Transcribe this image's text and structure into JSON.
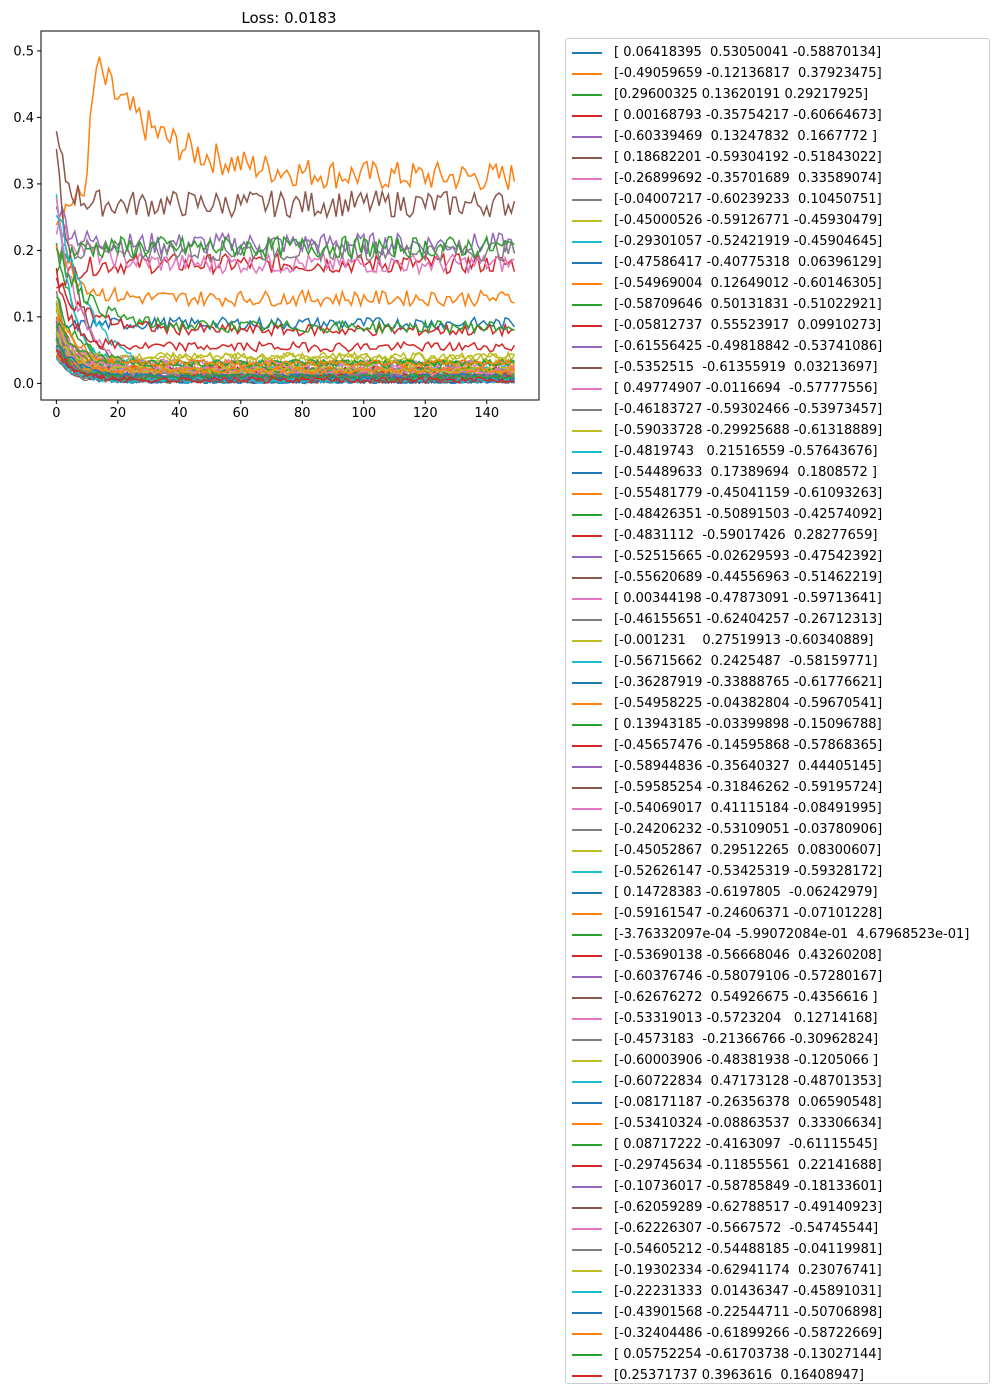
{
  "chart_data": {
    "type": "line",
    "title": "Loss: 0.0183",
    "xlabel": "",
    "ylabel": "",
    "xlim": [
      -5,
      157
    ],
    "ylim": [
      -0.025,
      0.53
    ],
    "xticks": [
      0,
      20,
      40,
      60,
      80,
      100,
      120,
      140
    ],
    "yticks": [
      0.0,
      0.1,
      0.2,
      0.3,
      0.4,
      0.5
    ],
    "ytick_labels": [
      "0.0",
      "0.1",
      "0.2",
      "0.3",
      "0.4",
      "0.5"
    ],
    "grid": false,
    "legend_position": "outside-right",
    "colors": [
      "#1f77b4",
      "#ff7f0e",
      "#2ca02c",
      "#d62728",
      "#9467bd",
      "#8c564b",
      "#e377c2",
      "#7f7f7f",
      "#bcbd22",
      "#17becf"
    ],
    "n_points": 150,
    "series": [
      {
        "name": "[ 0.06418395  0.53050041 -0.58870134]",
        "start": 0.12,
        "end": 0.003
      },
      {
        "name": "[-0.49059659 -0.12136817  0.37923475]",
        "start": 0.25,
        "peak": 0.505,
        "peak_at": 13,
        "end": 0.31
      },
      {
        "name": "[0.29600325 0.13620191 0.29217925]",
        "start": 0.22,
        "end": 0.015
      },
      {
        "name": "[ 0.00168793 -0.35754217 -0.60664673]",
        "start": 0.15,
        "end": 0.18
      },
      {
        "name": "[-0.60339469  0.13247832  0.1667772 ]",
        "start": 0.28,
        "end": 0.21
      },
      {
        "name": "[ 0.18682201 -0.59304192 -0.51843022]",
        "start": 0.37,
        "end": 0.27
      },
      {
        "name": "[-0.26899692 -0.35701689  0.33589074]",
        "start": 0.24,
        "end": 0.18
      },
      {
        "name": "[-0.04007217 -0.60239233  0.10450751]",
        "start": 0.2,
        "end": 0.2
      },
      {
        "name": "[-0.45000526 -0.59126771 -0.45930479]",
        "start": 0.1,
        "end": 0.04
      },
      {
        "name": "[-0.29301057 -0.52421919 -0.45904645]",
        "start": 0.3,
        "end": 0.03
      },
      {
        "name": "[-0.47586417 -0.40775318  0.06396129]",
        "start": 0.08,
        "end": 0.09
      },
      {
        "name": "[-0.54969004  0.12649012 -0.60146305]",
        "start": 0.22,
        "end": 0.128
      },
      {
        "name": "[-0.58709646  0.50131831 -0.51022921]",
        "start": 0.18,
        "end": 0.205
      },
      {
        "name": "[-0.05812737  0.55523917  0.09910273]",
        "start": 0.15,
        "end": 0.08
      },
      {
        "name": "[-0.61556425 -0.49818842 -0.53741086]",
        "start": 0.06,
        "end": 0.02
      },
      {
        "name": "[-0.5352515  -0.61355919  0.03213697]",
        "start": 0.35,
        "end": 0.005
      },
      {
        "name": "[ 0.49774907 -0.0116694  -0.57777556]",
        "start": 0.3,
        "end": 0.03
      },
      {
        "name": "[-0.46183727 -0.59302466 -0.53973457]",
        "start": 0.14,
        "end": 0.01
      },
      {
        "name": "[-0.59033728 -0.29925688 -0.61318889]",
        "start": 0.12,
        "end": 0.02
      },
      {
        "name": "[-0.4819743   0.21516559 -0.57643676]",
        "start": 0.27,
        "end": 0.005
      },
      {
        "name": "[-0.54489633  0.17389694  0.1808572 ]",
        "start": 0.09,
        "end": 0.01
      },
      {
        "name": "[-0.55481779 -0.45041159 -0.61093263]",
        "start": 0.05,
        "end": 0.015
      },
      {
        "name": "[-0.48426351 -0.50891503 -0.42574092]",
        "start": 0.21,
        "end": 0.085
      },
      {
        "name": "[-0.4831112  -0.59017426  0.28277659]",
        "start": 0.16,
        "end": 0.055
      },
      {
        "name": "[-0.52515665 -0.02629593 -0.47542392]",
        "start": 0.1,
        "end": 0.02
      },
      {
        "name": "[-0.55620689 -0.44556963 -0.51462219]",
        "start": 0.08,
        "end": 0.005
      },
      {
        "name": "[ 0.00344198 -0.47873091 -0.59713641]",
        "start": 0.09,
        "end": 0.03
      },
      {
        "name": "[-0.46155651 -0.62404257 -0.26712313]",
        "start": 0.05,
        "end": 0.01
      },
      {
        "name": "[-0.001231    0.27519913 -0.60340889]",
        "start": 0.11,
        "end": 0.04
      },
      {
        "name": "[-0.56715662  0.2425487  -0.58159771]",
        "start": 0.07,
        "end": 0.01
      },
      {
        "name": "[-0.36287919 -0.33888765 -0.61776621]",
        "start": 0.06,
        "end": 0.005
      },
      {
        "name": "[-0.54958225 -0.04382804 -0.59670541]",
        "start": 0.1,
        "end": 0.01
      },
      {
        "name": "[ 0.13943185 -0.03399898 -0.15096788]",
        "start": 0.13,
        "end": 0.03
      },
      {
        "name": "[-0.45657476 -0.14595868 -0.57868365]",
        "start": 0.09,
        "end": 0.02
      },
      {
        "name": "[-0.58944836 -0.35640327  0.44405145]",
        "start": 0.04,
        "end": 0.01
      },
      {
        "name": "[-0.59585254 -0.31846262 -0.59195724]",
        "start": 0.12,
        "end": 0.005
      },
      {
        "name": "[-0.54069017  0.41115184 -0.08491995]",
        "start": 0.08,
        "end": 0.02
      },
      {
        "name": "[-0.24206232 -0.53109051 -0.03780906]",
        "start": 0.06,
        "end": 0.005
      },
      {
        "name": "[-0.45052867  0.29512265  0.08300607]",
        "start": 0.11,
        "end": 0.03
      },
      {
        "name": "[-0.52626147 -0.53425319 -0.59328172]",
        "start": 0.05,
        "end": 0.02
      },
      {
        "name": "[ 0.14728383 -0.6197805  -0.06242979]",
        "start": 0.07,
        "end": 0.002
      },
      {
        "name": "[-0.59161547 -0.24606371 -0.07101228]",
        "start": 0.1,
        "end": 0.01
      },
      {
        "name": "[-3.76332097e-04 -5.99072084e-01  4.67968523e-01]",
        "start": 0.08,
        "end": 0.03
      },
      {
        "name": "[-0.53690138 -0.56668046  0.43260208]",
        "start": 0.06,
        "end": 0.02
      },
      {
        "name": "[-0.60376746 -0.58079106 -0.57280167]",
        "start": 0.09,
        "end": 0.01
      },
      {
        "name": "[-0.62676272  0.54926675 -0.4356616 ]",
        "start": 0.05,
        "end": 0.005
      },
      {
        "name": "[-0.53319013 -0.5723204   0.12714168]",
        "start": 0.07,
        "end": 0.02
      },
      {
        "name": "[-0.4573183  -0.21366766 -0.30962824]",
        "start": 0.06,
        "end": 0.01
      },
      {
        "name": "[-0.60003906 -0.48381938 -0.1205066 ]",
        "start": 0.08,
        "end": 0.02
      },
      {
        "name": "[-0.60722834  0.47173128 -0.48701353]",
        "start": 0.05,
        "end": 0.005
      },
      {
        "name": "[-0.08171187 -0.26356378  0.06590548]",
        "start": 0.07,
        "end": 0.01
      },
      {
        "name": "[-0.53410324 -0.08863537  0.33306634]",
        "start": 0.06,
        "end": 0.03
      },
      {
        "name": "[ 0.08717222 -0.4163097  -0.61115545]",
        "start": 0.09,
        "end": 0.02
      },
      {
        "name": "[-0.29745634 -0.11855561  0.22141688]",
        "start": 0.05,
        "end": 0.01
      },
      {
        "name": "[-0.10736017 -0.58785849 -0.18133601]",
        "start": 0.07,
        "end": 0.01
      },
      {
        "name": "[-0.62059289 -0.62788517 -0.49140923]",
        "start": 0.04,
        "end": 0.005
      },
      {
        "name": "[-0.62226307 -0.5667572  -0.54745544]",
        "start": 0.06,
        "end": 0.02
      },
      {
        "name": "[-0.54605212 -0.54488185 -0.04119981]",
        "start": 0.05,
        "end": 0.01
      },
      {
        "name": "[-0.19302334 -0.62941174  0.23076741]",
        "start": 0.08,
        "end": 0.02
      },
      {
        "name": "[-0.22231333  0.01436347 -0.45891031]",
        "start": 0.04,
        "end": 0.005
      },
      {
        "name": "[-0.43901568 -0.22544711 -0.50706898]",
        "start": 0.06,
        "end": 0.01
      },
      {
        "name": "[-0.32404486 -0.61899266 -0.58722669]",
        "start": 0.05,
        "end": 0.02
      },
      {
        "name": "[ 0.05752254 -0.61703738 -0.13027144]",
        "start": 0.07,
        "end": 0.01
      },
      {
        "name": "[0.25371737 0.3963616  0.16408947]",
        "start": 0.05,
        "end": 0.005
      }
    ]
  }
}
